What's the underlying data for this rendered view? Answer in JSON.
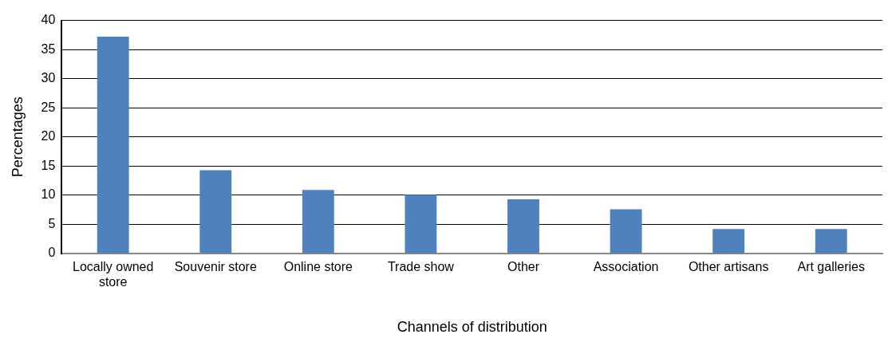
{
  "chart_data": {
    "type": "bar",
    "xlabel": "Channels of distribution",
    "ylabel": "Percentages",
    "categories": [
      "Locally owned store",
      "Souvenir store",
      "Online store",
      "Trade show",
      "Other",
      "Association",
      "Other artisans",
      "Art galleries"
    ],
    "values": [
      37.2,
      14.3,
      10.9,
      10.1,
      9.3,
      7.6,
      4.2,
      4.2
    ],
    "color": "#4f81bd",
    "ylim": [
      0,
      40
    ],
    "yticks": [
      0,
      5,
      10,
      15,
      20,
      25,
      30,
      35,
      40
    ],
    "grid": "y",
    "legend": false
  }
}
